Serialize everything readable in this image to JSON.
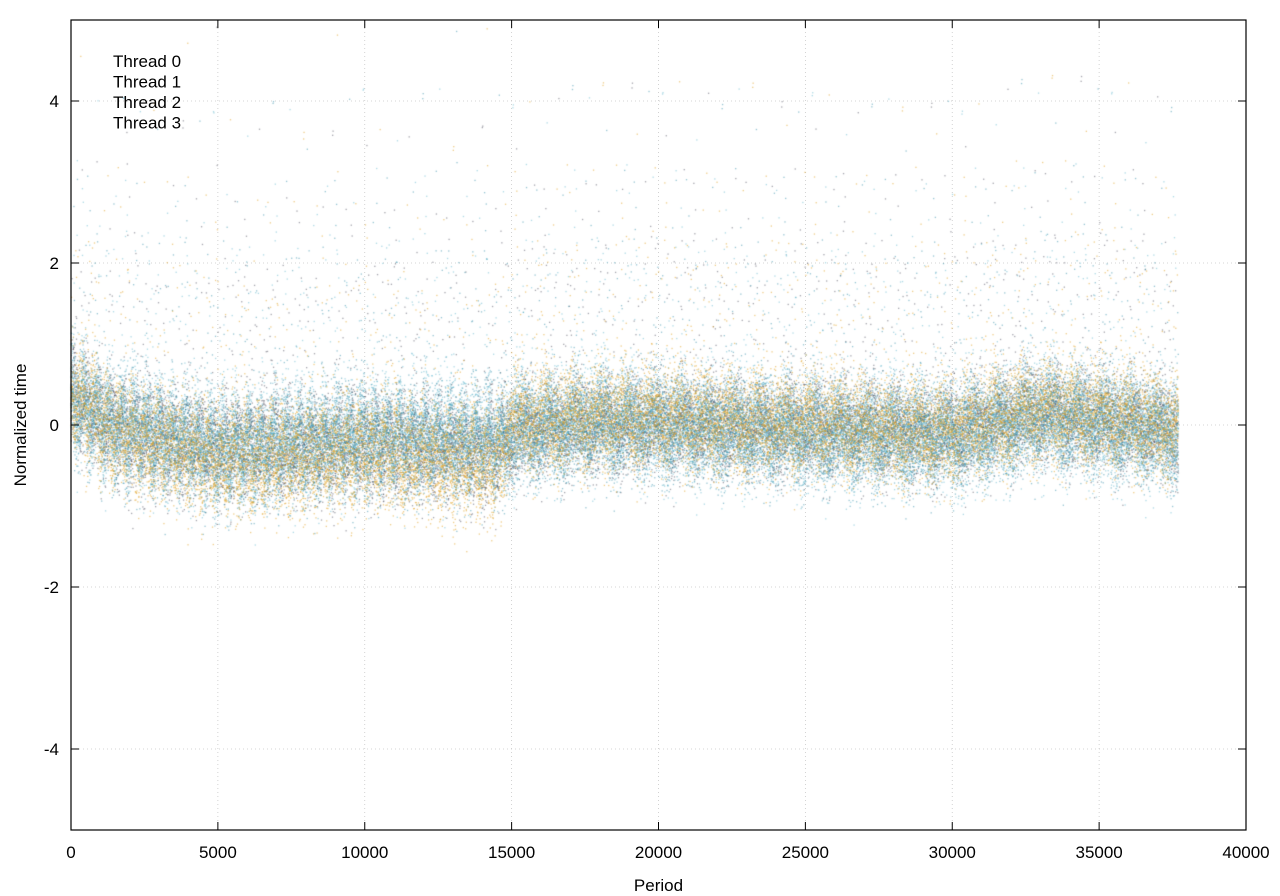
{
  "chart_data": {
    "type": "scatter",
    "title": "",
    "xlabel": "Period",
    "ylabel": "Normalized time",
    "xlim": [
      0,
      40000
    ],
    "ylim": [
      -5,
      5
    ],
    "x_ticks": [
      0,
      5000,
      10000,
      15000,
      20000,
      25000,
      30000,
      35000,
      40000
    ],
    "y_ticks": [
      -4,
      -2,
      0,
      2,
      4
    ],
    "x_tick_labels": [
      "0",
      "5000",
      "10000",
      "15000",
      "20000",
      "25000",
      "30000",
      "35000",
      "40000"
    ],
    "y_tick_labels": [
      "-4",
      "-2",
      "0",
      "2",
      "4"
    ],
    "grid": true,
    "legend_position": "top-left",
    "point_count_per_series": 37700,
    "series": [
      {
        "name": "Thread 0",
        "color": "#4a4a5a",
        "trend": [
          [
            0,
            0.35
          ],
          [
            1500,
            -0.05
          ],
          [
            5000,
            -0.3
          ],
          [
            10000,
            -0.25
          ],
          [
            14500,
            -0.3
          ],
          [
            15000,
            -0.1
          ],
          [
            18000,
            0.0
          ],
          [
            25000,
            -0.05
          ],
          [
            30000,
            -0.1
          ],
          [
            33000,
            0.15
          ],
          [
            37700,
            -0.1
          ]
        ],
        "spread": 0.28
      },
      {
        "name": "Thread 1",
        "color": "#5ab4cc",
        "trend": [
          [
            0,
            0.35
          ],
          [
            1500,
            0.0
          ],
          [
            5000,
            -0.3
          ],
          [
            10000,
            -0.15
          ],
          [
            14500,
            -0.15
          ],
          [
            15000,
            -0.05
          ],
          [
            18000,
            0.05
          ],
          [
            25000,
            -0.1
          ],
          [
            30000,
            -0.15
          ],
          [
            33000,
            0.1
          ],
          [
            37700,
            -0.1
          ]
        ],
        "spread": 0.32
      },
      {
        "name": "Thread 2",
        "color": "#2a8aa5",
        "trend": [
          [
            0,
            0.3
          ],
          [
            1500,
            -0.05
          ],
          [
            5000,
            -0.35
          ],
          [
            10000,
            -0.2
          ],
          [
            14500,
            -0.25
          ],
          [
            15000,
            -0.1
          ],
          [
            18000,
            0.0
          ],
          [
            25000,
            -0.1
          ],
          [
            30000,
            -0.15
          ],
          [
            33000,
            0.1
          ],
          [
            37700,
            -0.1
          ]
        ],
        "spread": 0.3
      },
      {
        "name": "Thread 3",
        "color": "#e0a020",
        "trend": [
          [
            0,
            0.35
          ],
          [
            1500,
            -0.1
          ],
          [
            5000,
            -0.45
          ],
          [
            10000,
            -0.35
          ],
          [
            14500,
            -0.5
          ],
          [
            15000,
            0.0
          ],
          [
            18000,
            0.1
          ],
          [
            25000,
            0.0
          ],
          [
            30000,
            -0.1
          ],
          [
            33000,
            0.2
          ],
          [
            37700,
            -0.05
          ]
        ],
        "spread": 0.3
      }
    ]
  }
}
